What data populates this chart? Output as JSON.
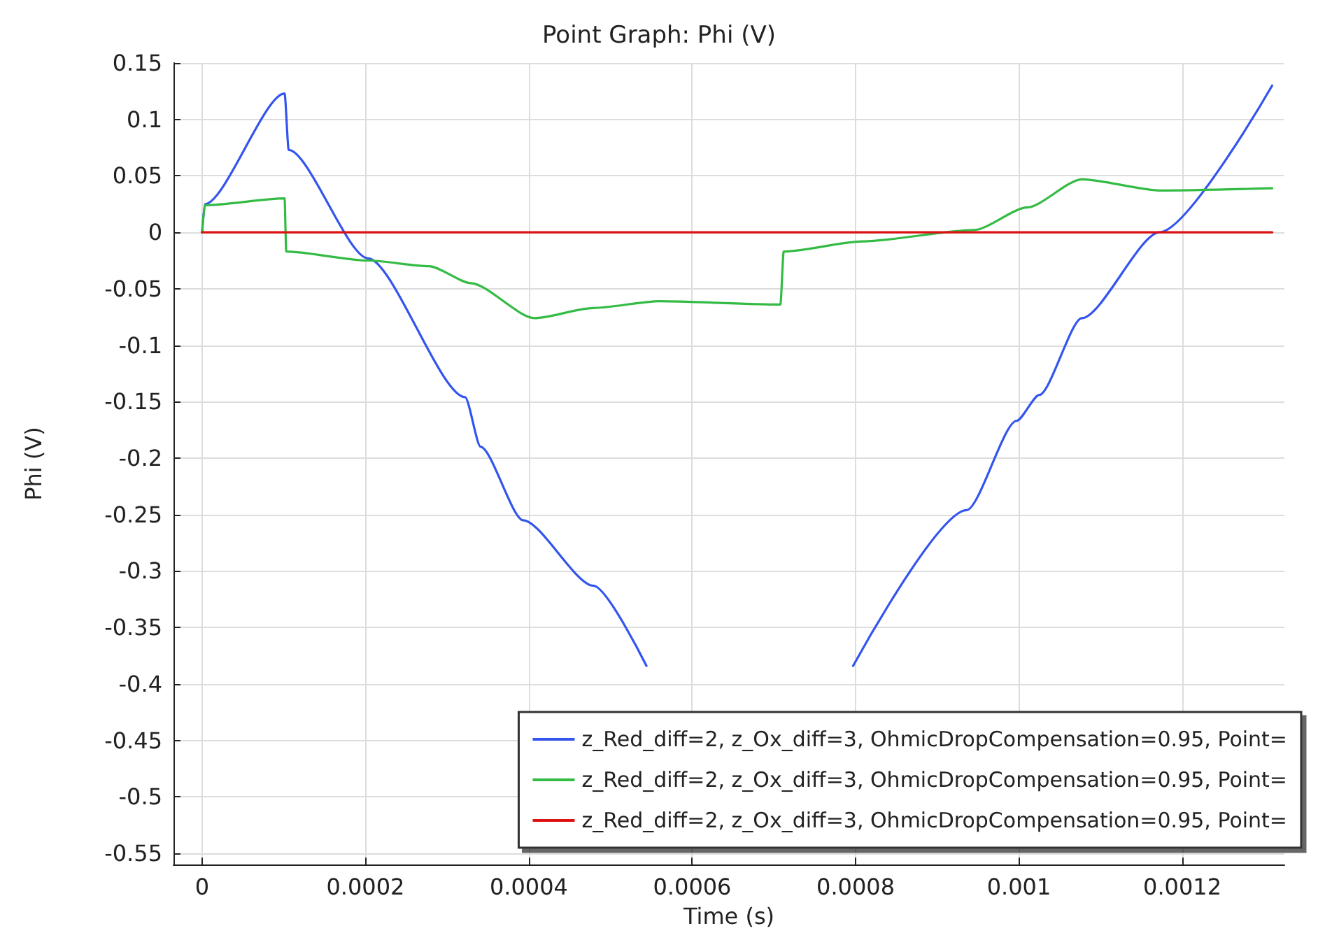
{
  "chart_data": {
    "type": "line",
    "title": "Point Graph: Phi (V)",
    "xlabel": "Time (s)",
    "ylabel": "Phi (V)",
    "xlim": [
      -3.5e-05,
      0.001325
    ],
    "ylim": [
      -0.56,
      0.15
    ],
    "xticks": [
      0,
      0.0002,
      0.0004,
      0.0006,
      0.0008,
      0.001,
      0.0012
    ],
    "yticks": [
      0.15,
      0.1,
      0.05,
      0,
      -0.05,
      -0.1,
      -0.15,
      -0.2,
      -0.25,
      -0.3,
      -0.35,
      -0.4,
      -0.45,
      -0.5,
      -0.55
    ],
    "grid": true,
    "legend": "bottom right",
    "marker": "none",
    "line_style": "solid",
    "series": [
      {
        "name": "z_Red_diff=2, z_Ox_diff=3, OhmicDropCompensation=0.95, Point=",
        "color": "#3355ee",
        "x": [
          0,
          3.4e-06,
          0.000101,
          0.000106,
          0.000203,
          0.000322,
          0.000341,
          0.000393,
          0.000479,
          0.000544,
          0.00067,
          0.000797,
          0.000936,
          0.000997,
          0.001025,
          0.001077,
          0.001172,
          0.00131
        ],
        "values": [
          0,
          0.025,
          0.123,
          0.073,
          -0.023,
          -0.146,
          -0.19,
          -0.255,
          -0.313,
          -0.384,
          null,
          -0.384,
          -0.246,
          -0.167,
          -0.144,
          -0.076,
          0,
          0.13
        ]
      },
      {
        "name": "z_Red_diff=2, z_Ox_diff=3, OhmicDropCompensation=0.95, Point=",
        "color": "#33bb44",
        "x": [
          0,
          3.4e-06,
          0.000101,
          0.000103,
          0.000203,
          0.000278,
          0.000329,
          0.000407,
          0.000479,
          0.00056,
          0.000708,
          0.000712,
          0.000809,
          0.000945,
          0.00101,
          0.001077,
          0.001174,
          0.00131
        ],
        "values": [
          0,
          0.024,
          0.03,
          -0.017,
          -0.025,
          -0.03,
          -0.045,
          -0.076,
          -0.067,
          -0.061,
          -0.064,
          -0.017,
          -0.008,
          0.002,
          0.022,
          0.047,
          0.037,
          0.039
        ]
      },
      {
        "name": "z_Red_diff=2, z_Ox_diff=3, OhmicDropCompensation=0.95, Point=",
        "color": "#dd1111",
        "x": [
          0,
          0.00131
        ],
        "values": [
          0,
          0
        ]
      }
    ]
  }
}
